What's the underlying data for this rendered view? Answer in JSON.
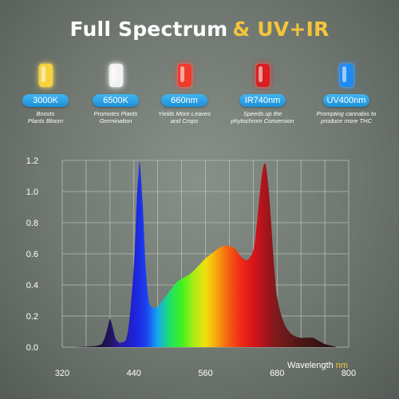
{
  "title": {
    "part1": "Full Spectrum",
    "part2": "& UV+IR"
  },
  "colors": {
    "title_white": "#ffffff",
    "title_accent": "#f3c53a",
    "pill_blue": "#1d8fd6",
    "grid": "#b9bdb8",
    "background": "#6f7770"
  },
  "leds": [
    {
      "color": "#f7d23c",
      "label": "3000K",
      "desc_line1": "Boosts",
      "desc_line2": "Plants Bloom"
    },
    {
      "color": "#f2f2f2",
      "label": "6500K",
      "desc_line1": "Promotes Plants",
      "desc_line2": "Germination"
    },
    {
      "color": "#f03a2a",
      "label": "660nm",
      "desc_line1": "Yields More Leaves",
      "desc_line2": "and Crops"
    },
    {
      "color": "#d91f1f",
      "label": "IR740nm",
      "desc_line1": "Speeds up the",
      "desc_line2": "phytochrom Conversion"
    },
    {
      "color": "#1f8bf2",
      "label": "UV400nm",
      "desc_line1": "Prompting cannabis to",
      "desc_line2": "produce more THC"
    }
  ],
  "chart_data": {
    "type": "area",
    "xlabel": "Wavelength",
    "xunit": "nm",
    "xlim": [
      320,
      800
    ],
    "ylim": [
      0,
      1.2
    ],
    "xticks": [
      320,
      440,
      560,
      680,
      800
    ],
    "yticks": [
      "0.0",
      "0.2",
      "0.4",
      "0.6",
      "0.8",
      "1.0",
      "1.2"
    ],
    "grid": true,
    "series": [
      {
        "x": [
          340,
          380,
          390,
          397,
          400,
          405,
          410,
          420,
          430,
          440,
          445,
          448,
          450,
          455,
          460,
          465,
          470,
          475,
          480,
          490,
          500,
          510,
          520,
          530,
          540,
          550,
          560,
          570,
          580,
          590,
          600,
          610,
          620,
          630,
          640,
          645,
          650,
          655,
          660,
          665,
          670,
          675,
          680,
          690,
          700,
          710,
          720,
          730,
          740,
          750,
          760,
          770,
          780
        ],
        "y": [
          0.0,
          0.01,
          0.05,
          0.14,
          0.18,
          0.12,
          0.05,
          0.03,
          0.1,
          0.52,
          0.95,
          1.12,
          1.18,
          0.9,
          0.5,
          0.3,
          0.26,
          0.25,
          0.26,
          0.31,
          0.36,
          0.41,
          0.44,
          0.46,
          0.49,
          0.53,
          0.57,
          0.6,
          0.63,
          0.65,
          0.65,
          0.63,
          0.58,
          0.56,
          0.62,
          0.75,
          0.95,
          1.12,
          1.18,
          1.05,
          0.8,
          0.52,
          0.32,
          0.17,
          0.1,
          0.07,
          0.06,
          0.06,
          0.06,
          0.04,
          0.02,
          0.01,
          0.0
        ]
      }
    ]
  }
}
